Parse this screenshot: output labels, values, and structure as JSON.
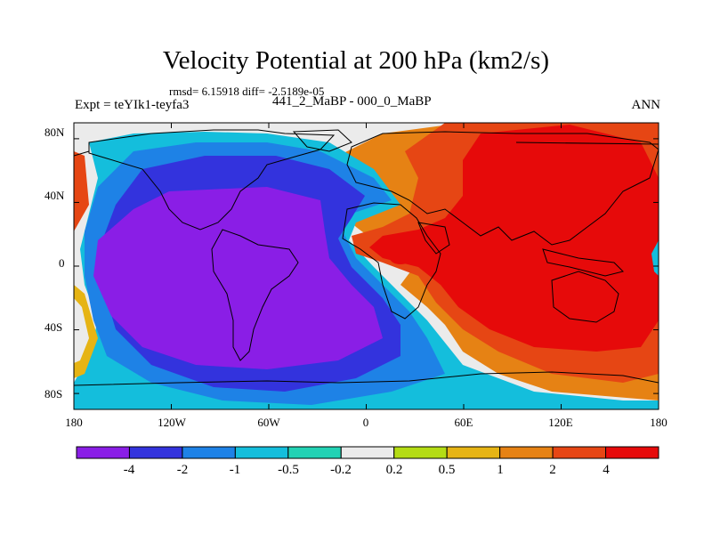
{
  "title": "Velocity Potential at 200 hPa (km2/s)",
  "stats": "rmsd= 6.15918 diff= -2.5189e-05",
  "experiment": "Expt = teYIk1-teyfa3",
  "comparison": "441_2_MaBP - 000_0_MaBP",
  "season": "ANN",
  "lat_labels": [
    "80N",
    "40N",
    "0",
    "40S",
    "80S"
  ],
  "lon_labels": [
    "180",
    "120W",
    "60W",
    "0",
    "60E",
    "120E",
    "180"
  ],
  "colorbar": {
    "labels": [
      "-4",
      "-2",
      "-1",
      "-0.5",
      "-0.2",
      "0.2",
      "0.5",
      "1",
      "2",
      "4"
    ],
    "colors": [
      "#8a1ee6",
      "#3333dd",
      "#1e82e6",
      "#14bedc",
      "#22d2b4",
      "#ebebeb",
      "#b4dc14",
      "#e6b414",
      "#e68214",
      "#e64614",
      "#e60a0a"
    ]
  }
}
